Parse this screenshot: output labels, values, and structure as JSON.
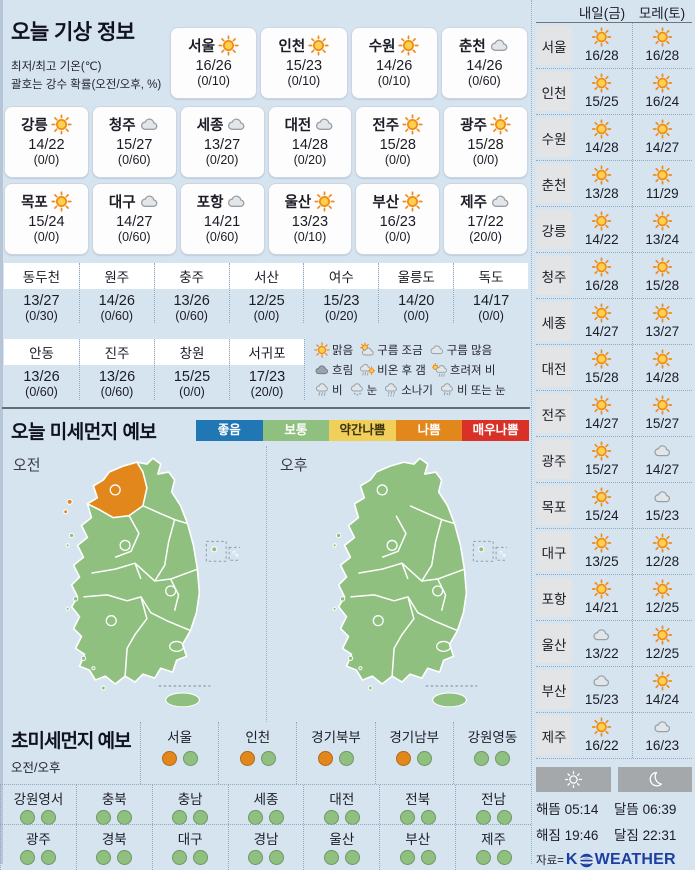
{
  "today": {
    "title": "오늘 기상 정보",
    "note1": "최저/최고 기온(℃)",
    "note2": "괄호는 강수 확률(오전/오후, %)",
    "cards_row1": [
      {
        "name": "서울",
        "icon": "sun",
        "temp": "16/26",
        "rain": "(0/10)"
      },
      {
        "name": "인천",
        "icon": "sun",
        "temp": "15/23",
        "rain": "(0/10)"
      },
      {
        "name": "수원",
        "icon": "sun",
        "temp": "14/26",
        "rain": "(0/10)"
      },
      {
        "name": "춘천",
        "icon": "cloud",
        "temp": "14/26",
        "rain": "(0/60)"
      }
    ],
    "cards_row2": [
      {
        "name": "강릉",
        "icon": "sun",
        "temp": "14/22",
        "rain": "(0/0)"
      },
      {
        "name": "청주",
        "icon": "cloud",
        "temp": "15/27",
        "rain": "(0/60)"
      },
      {
        "name": "세종",
        "icon": "cloud",
        "temp": "13/27",
        "rain": "(0/20)"
      },
      {
        "name": "대전",
        "icon": "cloud",
        "temp": "14/28",
        "rain": "(0/20)"
      },
      {
        "name": "전주",
        "icon": "sun",
        "temp": "15/28",
        "rain": "(0/0)"
      },
      {
        "name": "광주",
        "icon": "sun",
        "temp": "15/28",
        "rain": "(0/0)"
      }
    ],
    "cards_row3": [
      {
        "name": "목포",
        "icon": "sun",
        "temp": "15/24",
        "rain": "(0/0)"
      },
      {
        "name": "대구",
        "icon": "cloud",
        "temp": "14/27",
        "rain": "(0/60)"
      },
      {
        "name": "포항",
        "icon": "cloud",
        "temp": "14/21",
        "rain": "(0/60)"
      },
      {
        "name": "울산",
        "icon": "sun",
        "temp": "13/23",
        "rain": "(0/10)"
      },
      {
        "name": "부산",
        "icon": "sun",
        "temp": "16/23",
        "rain": "(0/0)"
      },
      {
        "name": "제주",
        "icon": "cloud",
        "temp": "17/22",
        "rain": "(20/0)"
      }
    ],
    "table1": [
      {
        "name": "동두천",
        "temp": "13/27",
        "rain": "(0/30)"
      },
      {
        "name": "원주",
        "temp": "14/26",
        "rain": "(0/60)"
      },
      {
        "name": "충주",
        "temp": "13/26",
        "rain": "(0/60)"
      },
      {
        "name": "서산",
        "temp": "12/25",
        "rain": "(0/0)"
      },
      {
        "name": "여수",
        "temp": "15/23",
        "rain": "(0/20)"
      },
      {
        "name": "울릉도",
        "temp": "14/20",
        "rain": "(0/0)"
      },
      {
        "name": "독도",
        "temp": "14/17",
        "rain": "(0/0)"
      }
    ],
    "table2": [
      {
        "name": "안동",
        "temp": "13/26",
        "rain": "(0/60)"
      },
      {
        "name": "진주",
        "temp": "13/26",
        "rain": "(0/60)"
      },
      {
        "name": "창원",
        "temp": "15/25",
        "rain": "(0/0)"
      },
      {
        "name": "서귀포",
        "temp": "17/23",
        "rain": "(20/0)"
      }
    ]
  },
  "weather_legend": {
    "row1": [
      {
        "icon": "sun",
        "label": "맑음"
      },
      {
        "icon": "sun-cloud",
        "label": "구름 조금"
      },
      {
        "icon": "cloud",
        "label": "구름 많음"
      }
    ],
    "row2": [
      {
        "icon": "dark-cloud",
        "label": "흐림"
      },
      {
        "icon": "rain-sun",
        "label": "비온 후 갬"
      },
      {
        "icon": "sun-rain",
        "label": "흐려져 비"
      }
    ],
    "row3": [
      {
        "icon": "rain",
        "label": "비"
      },
      {
        "icon": "snow",
        "label": "눈"
      },
      {
        "icon": "shower",
        "label": "소나기"
      },
      {
        "icon": "rain-snow",
        "label": "비 또는 눈"
      }
    ]
  },
  "dust": {
    "title": "오늘 미세먼지 예보",
    "levels": [
      {
        "label": "좋음",
        "color": "#2077b4",
        "text": "#ffffff"
      },
      {
        "label": "보통",
        "color": "#8fc07f",
        "text": "#ffffff"
      },
      {
        "label": "약간나쁨",
        "color": "#f0d05a",
        "text": "#3f3410"
      },
      {
        "label": "나쁨",
        "color": "#e2871c",
        "text": "#ffffff"
      },
      {
        "label": "매우나쁨",
        "color": "#d93127",
        "text": "#ffffff"
      }
    ],
    "map_am_label": "오전",
    "map_pm_label": "오후",
    "map_am_gyeonggi_level": "나쁨",
    "map_default_level": "보통"
  },
  "ultrafine": {
    "title": "초미세먼지 예보",
    "sub": "오전/오후",
    "level_colors": {
      "보통": "#8fc07f",
      "나쁨": "#e2871c"
    },
    "row1": [
      {
        "name": "서울",
        "am": "나쁨",
        "pm": "보통"
      },
      {
        "name": "인천",
        "am": "나쁨",
        "pm": "보통"
      },
      {
        "name": "경기북부",
        "am": "나쁨",
        "pm": "보통"
      },
      {
        "name": "경기남부",
        "am": "나쁨",
        "pm": "보통"
      },
      {
        "name": "강원영동",
        "am": "보통",
        "pm": "보통"
      }
    ],
    "row2": [
      {
        "name": "강원영서",
        "am": "보통",
        "pm": "보통"
      },
      {
        "name": "충북",
        "am": "보통",
        "pm": "보통"
      },
      {
        "name": "충남",
        "am": "보통",
        "pm": "보통"
      },
      {
        "name": "세종",
        "am": "보통",
        "pm": "보통"
      },
      {
        "name": "대전",
        "am": "보통",
        "pm": "보통"
      },
      {
        "name": "전북",
        "am": "보통",
        "pm": "보통"
      },
      {
        "name": "전남",
        "am": "보통",
        "pm": "보통"
      }
    ],
    "row3": [
      {
        "name": "광주",
        "am": "보통",
        "pm": "보통"
      },
      {
        "name": "경북",
        "am": "보통",
        "pm": "보통"
      },
      {
        "name": "대구",
        "am": "보통",
        "pm": "보통"
      },
      {
        "name": "경남",
        "am": "보통",
        "pm": "보통"
      },
      {
        "name": "울산",
        "am": "보통",
        "pm": "보통"
      },
      {
        "name": "부산",
        "am": "보통",
        "pm": "보통"
      },
      {
        "name": "제주",
        "am": "보통",
        "pm": "보통"
      }
    ]
  },
  "forecast": {
    "col1": "내일(금)",
    "col2": "모레(토)",
    "rows": [
      {
        "name": "서울",
        "d1": {
          "icon": "sun",
          "temp": "16/28"
        },
        "d2": {
          "icon": "sun",
          "temp": "16/28"
        }
      },
      {
        "name": "인천",
        "d1": {
          "icon": "sun",
          "temp": "15/25"
        },
        "d2": {
          "icon": "sun",
          "temp": "16/24"
        }
      },
      {
        "name": "수원",
        "d1": {
          "icon": "sun",
          "temp": "14/28"
        },
        "d2": {
          "icon": "sun",
          "temp": "14/27"
        }
      },
      {
        "name": "춘천",
        "d1": {
          "icon": "sun",
          "temp": "13/28"
        },
        "d2": {
          "icon": "sun",
          "temp": "11/29"
        }
      },
      {
        "name": "강릉",
        "d1": {
          "icon": "sun",
          "temp": "14/22"
        },
        "d2": {
          "icon": "sun",
          "temp": "13/24"
        }
      },
      {
        "name": "청주",
        "d1": {
          "icon": "sun",
          "temp": "16/28"
        },
        "d2": {
          "icon": "sun",
          "temp": "15/28"
        }
      },
      {
        "name": "세종",
        "d1": {
          "icon": "sun",
          "temp": "14/27"
        },
        "d2": {
          "icon": "sun",
          "temp": "13/27"
        }
      },
      {
        "name": "대전",
        "d1": {
          "icon": "sun",
          "temp": "15/28"
        },
        "d2": {
          "icon": "sun",
          "temp": "14/28"
        }
      },
      {
        "name": "전주",
        "d1": {
          "icon": "sun",
          "temp": "14/27"
        },
        "d2": {
          "icon": "sun",
          "temp": "15/27"
        }
      },
      {
        "name": "광주",
        "d1": {
          "icon": "sun",
          "temp": "15/27"
        },
        "d2": {
          "icon": "cloud",
          "temp": "14/27"
        }
      },
      {
        "name": "목포",
        "d1": {
          "icon": "sun",
          "temp": "15/24"
        },
        "d2": {
          "icon": "cloud",
          "temp": "15/23"
        }
      },
      {
        "name": "대구",
        "d1": {
          "icon": "sun",
          "temp": "13/25"
        },
        "d2": {
          "icon": "sun",
          "temp": "12/28"
        }
      },
      {
        "name": "포항",
        "d1": {
          "icon": "sun",
          "temp": "14/21"
        },
        "d2": {
          "icon": "sun",
          "temp": "12/25"
        }
      },
      {
        "name": "울산",
        "d1": {
          "icon": "cloud",
          "temp": "13/22"
        },
        "d2": {
          "icon": "sun",
          "temp": "12/25"
        }
      },
      {
        "name": "부산",
        "d1": {
          "icon": "cloud",
          "temp": "15/23"
        },
        "d2": {
          "icon": "sun",
          "temp": "14/24"
        }
      },
      {
        "name": "제주",
        "d1": {
          "icon": "sun",
          "temp": "16/22"
        },
        "d2": {
          "icon": "cloud",
          "temp": "16/23"
        }
      }
    ]
  },
  "astro": {
    "sunrise": "해뜸 05:14",
    "sunset": "해짐 19:46",
    "moonrise": "달뜸 06:39",
    "moonset": "달짐 22:31"
  },
  "source": {
    "prefix": "자료=",
    "logo_k": "K",
    "logo_rest": "WEATHER"
  }
}
